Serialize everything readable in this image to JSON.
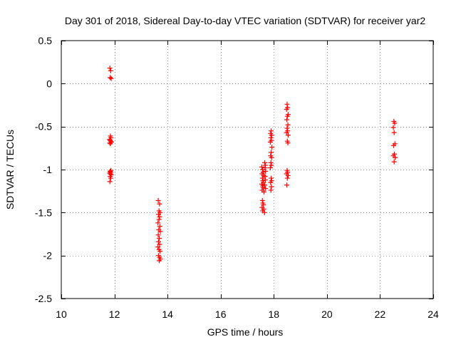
{
  "chart_data": {
    "type": "scatter",
    "title": "Day 301 of 2018, Sidereal Day-to-day VTEC variation (SDTVAR) for receiver yar2",
    "xlabel": "GPS time / hours",
    "ylabel": "SDTVAR / TECUs",
    "xlim": [
      10,
      24
    ],
    "ylim": [
      -2.5,
      0.5
    ],
    "x_ticks": [
      10,
      12,
      14,
      16,
      18,
      20,
      22,
      24
    ],
    "y_ticks": [
      -2.5,
      -2,
      -1.5,
      -1,
      -0.5,
      0,
      0.5
    ],
    "x_tick_labels": [
      "10",
      "12",
      "14",
      "16",
      "18",
      "20",
      "22",
      "24"
    ],
    "y_tick_labels": [
      "-2.5",
      "-2",
      "-1.5",
      "-1",
      "-0.5",
      "0",
      "0.5"
    ],
    "grid": true,
    "marker": "plus",
    "marker_color": "#ff0000",
    "series": [
      {
        "name": "SDTVAR",
        "points": [
          [
            11.83,
            0.18
          ],
          [
            11.86,
            0.15
          ],
          [
            11.84,
            0.07
          ],
          [
            11.88,
            0.06
          ],
          [
            11.85,
            -0.61
          ],
          [
            11.87,
            -0.63
          ],
          [
            11.82,
            -0.65
          ],
          [
            11.84,
            -0.66
          ],
          [
            11.86,
            -0.67
          ],
          [
            11.89,
            -0.68
          ],
          [
            11.83,
            -0.69
          ],
          [
            11.85,
            -0.7
          ],
          [
            11.87,
            -1.01
          ],
          [
            11.84,
            -1.02
          ],
          [
            11.86,
            -1.03
          ],
          [
            11.82,
            -1.04
          ],
          [
            11.85,
            -1.05
          ],
          [
            11.88,
            -1.06
          ],
          [
            11.84,
            -1.08
          ],
          [
            11.86,
            -1.1
          ],
          [
            11.83,
            -1.14
          ],
          [
            13.65,
            -1.36
          ],
          [
            13.7,
            -1.4
          ],
          [
            13.68,
            -1.48
          ],
          [
            13.72,
            -1.5
          ],
          [
            13.66,
            -1.52
          ],
          [
            13.7,
            -1.55
          ],
          [
            13.68,
            -1.58
          ],
          [
            13.64,
            -1.62
          ],
          [
            13.71,
            -1.66
          ],
          [
            13.67,
            -1.7
          ],
          [
            13.73,
            -1.72
          ],
          [
            13.65,
            -1.76
          ],
          [
            13.69,
            -1.8
          ],
          [
            13.66,
            -1.84
          ],
          [
            13.7,
            -1.87
          ],
          [
            13.64,
            -1.9
          ],
          [
            13.68,
            -1.93
          ],
          [
            13.72,
            -1.95
          ],
          [
            13.66,
            -2.0
          ],
          [
            13.7,
            -2.02
          ],
          [
            13.73,
            -2.04
          ],
          [
            13.69,
            -2.06
          ],
          [
            17.55,
            -0.97
          ],
          [
            17.58,
            -1.0
          ],
          [
            17.6,
            -1.03
          ],
          [
            17.56,
            -1.05
          ],
          [
            17.62,
            -1.07
          ],
          [
            17.57,
            -1.1
          ],
          [
            17.59,
            -1.13
          ],
          [
            17.61,
            -1.15
          ],
          [
            17.55,
            -1.17
          ],
          [
            17.58,
            -1.19
          ],
          [
            17.6,
            -1.21
          ],
          [
            17.56,
            -1.24
          ],
          [
            17.63,
            -1.26
          ],
          [
            17.57,
            -1.36
          ],
          [
            17.59,
            -1.39
          ],
          [
            17.61,
            -1.41
          ],
          [
            17.56,
            -1.44
          ],
          [
            17.62,
            -1.46
          ],
          [
            17.58,
            -1.48
          ],
          [
            17.65,
            -1.5
          ],
          [
            17.66,
            -0.92
          ],
          [
            17.68,
            -0.95
          ],
          [
            17.67,
            -0.98
          ],
          [
            17.69,
            -1.02
          ],
          [
            17.67,
            -1.08
          ],
          [
            17.68,
            -1.12
          ],
          [
            17.66,
            -1.18
          ],
          [
            17.69,
            -1.22
          ],
          [
            17.9,
            -0.55
          ],
          [
            17.88,
            -0.58
          ],
          [
            17.92,
            -0.6
          ],
          [
            17.89,
            -0.63
          ],
          [
            17.91,
            -0.66
          ],
          [
            17.87,
            -0.68
          ],
          [
            17.93,
            -0.74
          ],
          [
            17.9,
            -0.8
          ],
          [
            17.88,
            -0.84
          ],
          [
            17.92,
            -0.86
          ],
          [
            17.89,
            -0.92
          ],
          [
            17.91,
            -0.95
          ],
          [
            17.87,
            -0.98
          ],
          [
            17.9,
            -1.1
          ],
          [
            17.92,
            -1.13
          ],
          [
            17.88,
            -1.15
          ],
          [
            17.91,
            -1.2
          ],
          [
            17.89,
            -1.24
          ],
          [
            18.5,
            -0.24
          ],
          [
            18.52,
            -0.28
          ],
          [
            18.48,
            -0.3
          ],
          [
            18.54,
            -0.36
          ],
          [
            18.51,
            -0.38
          ],
          [
            18.49,
            -0.42
          ],
          [
            18.53,
            -0.48
          ],
          [
            18.5,
            -0.52
          ],
          [
            18.52,
            -0.55
          ],
          [
            18.48,
            -0.57
          ],
          [
            18.54,
            -0.6
          ],
          [
            18.51,
            -0.67
          ],
          [
            18.53,
            -0.69
          ],
          [
            18.5,
            -1.01
          ],
          [
            18.52,
            -1.03
          ],
          [
            18.48,
            -1.05
          ],
          [
            18.54,
            -1.07
          ],
          [
            18.51,
            -1.1
          ],
          [
            18.49,
            -1.18
          ],
          [
            22.52,
            -0.44
          ],
          [
            22.55,
            -0.46
          ],
          [
            22.5,
            -0.51
          ],
          [
            22.53,
            -0.57
          ],
          [
            22.56,
            -0.7
          ],
          [
            22.51,
            -0.72
          ],
          [
            22.54,
            -0.82
          ],
          [
            22.5,
            -0.84
          ],
          [
            22.57,
            -0.86
          ],
          [
            22.53,
            -0.91
          ]
        ]
      }
    ]
  }
}
